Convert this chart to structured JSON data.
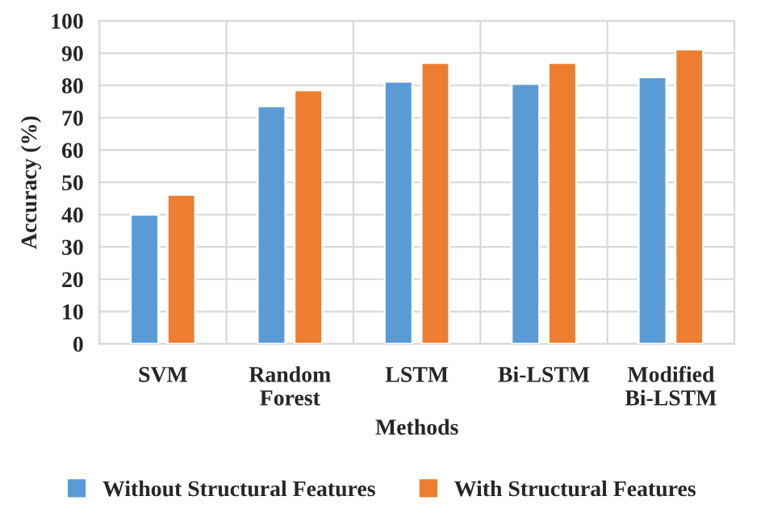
{
  "chart_data": {
    "type": "bar",
    "xlabel": "Methods",
    "ylabel": "Accuracy (%)",
    "categories": [
      "SVM",
      "Random\nForest",
      "LSTM",
      "Bi-LSTM",
      "Modified\nBi-LSTM"
    ],
    "series": [
      {
        "name": "Without Structural Features",
        "color": "#5b9bd5",
        "values": [
          40.0,
          73.6,
          81.2,
          80.5,
          82.6
        ]
      },
      {
        "name": "With Structural Features",
        "color": "#ed7d31",
        "values": [
          46.2,
          78.5,
          87.0,
          87.0,
          91.2
        ]
      }
    ],
    "ylim": [
      0,
      100
    ],
    "yticks": [
      0,
      10,
      20,
      30,
      40,
      50,
      60,
      70,
      80,
      90,
      100
    ],
    "grid": true,
    "legend": "bottom"
  }
}
